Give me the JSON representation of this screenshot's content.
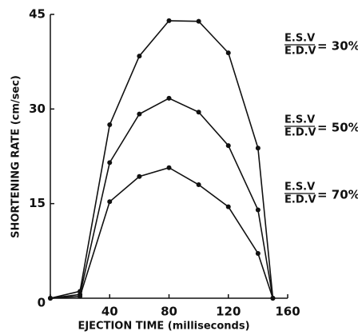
{
  "chart_data": {
    "type": "line",
    "xlabel": "EJECTION TIME (milliseconds)",
    "ylabel": "SHORTENING RATE (cm/sec)",
    "x": [
      0,
      20,
      40,
      60,
      80,
      100,
      120,
      140,
      150
    ],
    "series": [
      {
        "numerator": "E.S.V",
        "denominator": "E.D.V",
        "ratio": "= 30%",
        "color": "#111111",
        "values": [
          0,
          1.1,
          27.5,
          38.4,
          44,
          43.9,
          38.9,
          23.8,
          0
        ]
      },
      {
        "numerator": "E.S.V",
        "denominator": "E.D.V",
        "ratio": "= 50%",
        "color": "#111111",
        "values": [
          0,
          0.6,
          21.5,
          29.2,
          31.7,
          29.5,
          24.2,
          14,
          0
        ]
      },
      {
        "numerator": "E.S.V",
        "denominator": "E.D.V",
        "ratio": "= 70%",
        "color": "#111111",
        "values": [
          0,
          0.3,
          15.3,
          19.3,
          20.7,
          18,
          14.5,
          7.1,
          0
        ]
      }
    ],
    "xlim": [
      0,
      160
    ],
    "xticks": [
      0,
      40,
      80,
      120,
      160
    ],
    "ylim": [
      0,
      45
    ],
    "yticks": [
      0,
      15,
      30,
      45
    ]
  }
}
